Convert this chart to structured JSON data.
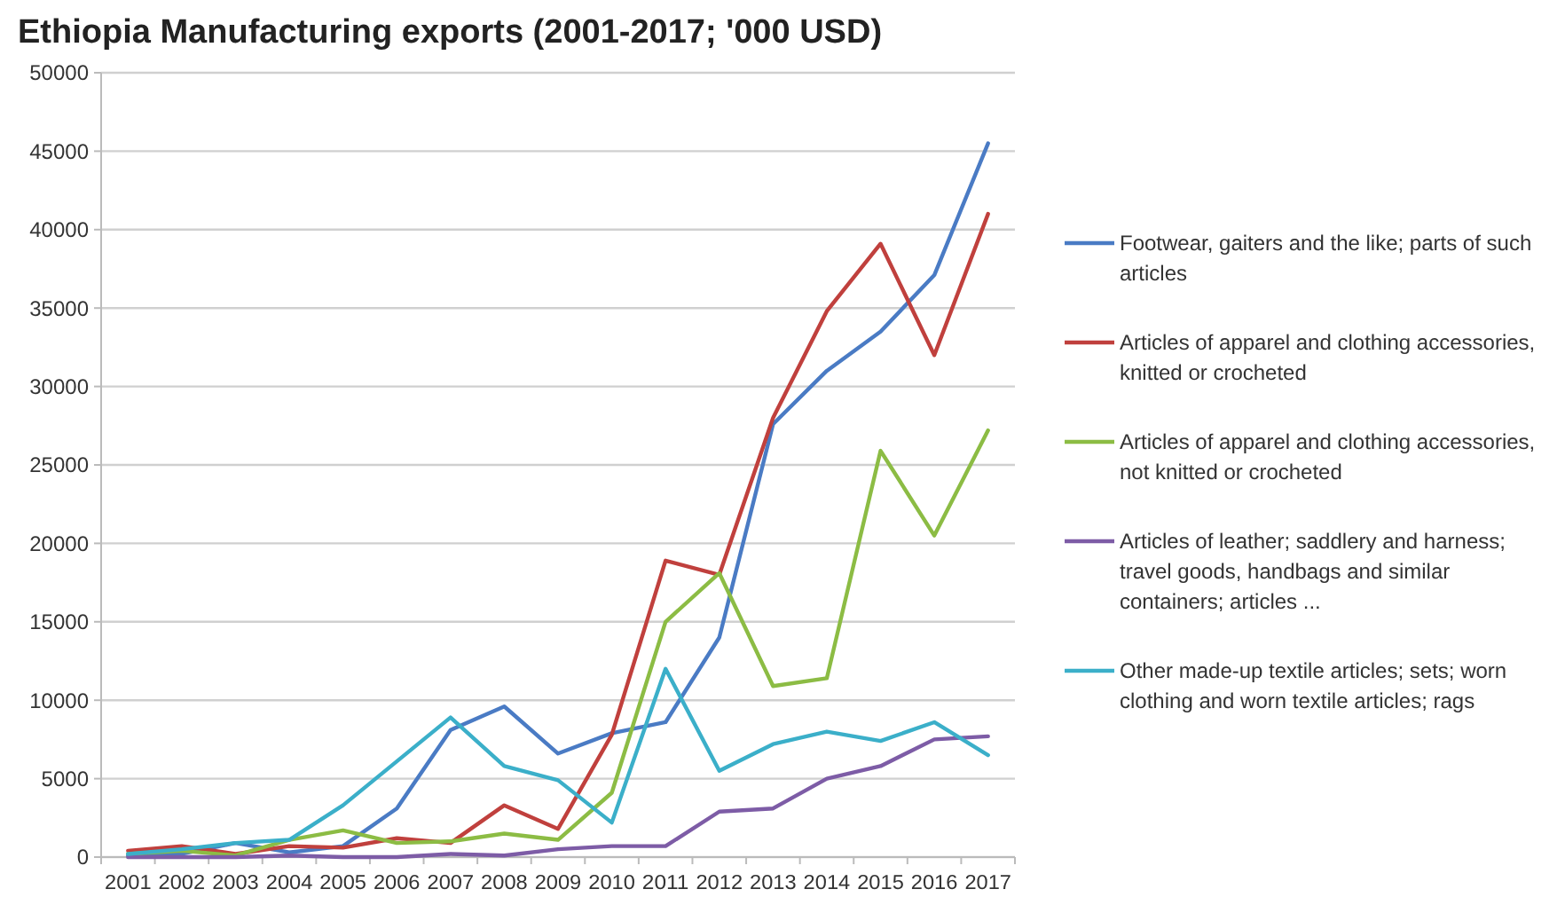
{
  "chart_data": {
    "type": "line",
    "title": "Ethiopia Manufacturing exports (2001-2017; '000 USD)",
    "categories": [
      "2001",
      "2002",
      "2003",
      "2004",
      "2005",
      "2006",
      "2007",
      "2008",
      "2009",
      "2010",
      "2011",
      "2012",
      "2013",
      "2014",
      "2015",
      "2016",
      "2017"
    ],
    "series": [
      {
        "name": "Footwear, gaiters and the like; parts of such articles",
        "color": "#4a7bc4",
        "values": [
          100,
          200,
          900,
          300,
          700,
          3100,
          8100,
          9600,
          6600,
          7900,
          8600,
          14000,
          27600,
          31000,
          33500,
          37100,
          45500
        ]
      },
      {
        "name": "Articles of apparel and clothing accessories, knitted or crocheted",
        "color": "#c0403d",
        "values": [
          400,
          700,
          200,
          700,
          600,
          1200,
          900,
          3300,
          1800,
          7800,
          18900,
          18000,
          28000,
          34800,
          39100,
          32000,
          41000
        ]
      },
      {
        "name": "Articles of apparel and clothing accessories, not knitted or crocheted",
        "color": "#8cbc44",
        "values": [
          200,
          400,
          100,
          1100,
          1700,
          900,
          1000,
          1500,
          1100,
          4100,
          15000,
          18100,
          10900,
          11400,
          25900,
          20500,
          27200
        ]
      },
      {
        "name": "Articles of leather; saddlery and harness; travel goods, handbags and similar containers; articles ...",
        "color": "#7d5ca6",
        "values": [
          0,
          0,
          0,
          100,
          0,
          0,
          200,
          100,
          500,
          700,
          700,
          2900,
          3100,
          5000,
          5800,
          7500,
          7700
        ]
      },
      {
        "name": "Other made-up textile articles; sets; worn clothing and worn textile articles; rags",
        "color": "#3bafc9",
        "values": [
          200,
          500,
          900,
          1100,
          3300,
          6100,
          8900,
          5800,
          4900,
          2200,
          12000,
          5500,
          7200,
          8000,
          7400,
          8600,
          6500
        ]
      }
    ],
    "ylim": [
      0,
      50000
    ],
    "yticks": [
      0,
      5000,
      10000,
      15000,
      20000,
      25000,
      30000,
      35000,
      40000,
      45000,
      50000
    ],
    "grid": "y",
    "legend": "right",
    "marker": "none",
    "line_style": "solid"
  }
}
